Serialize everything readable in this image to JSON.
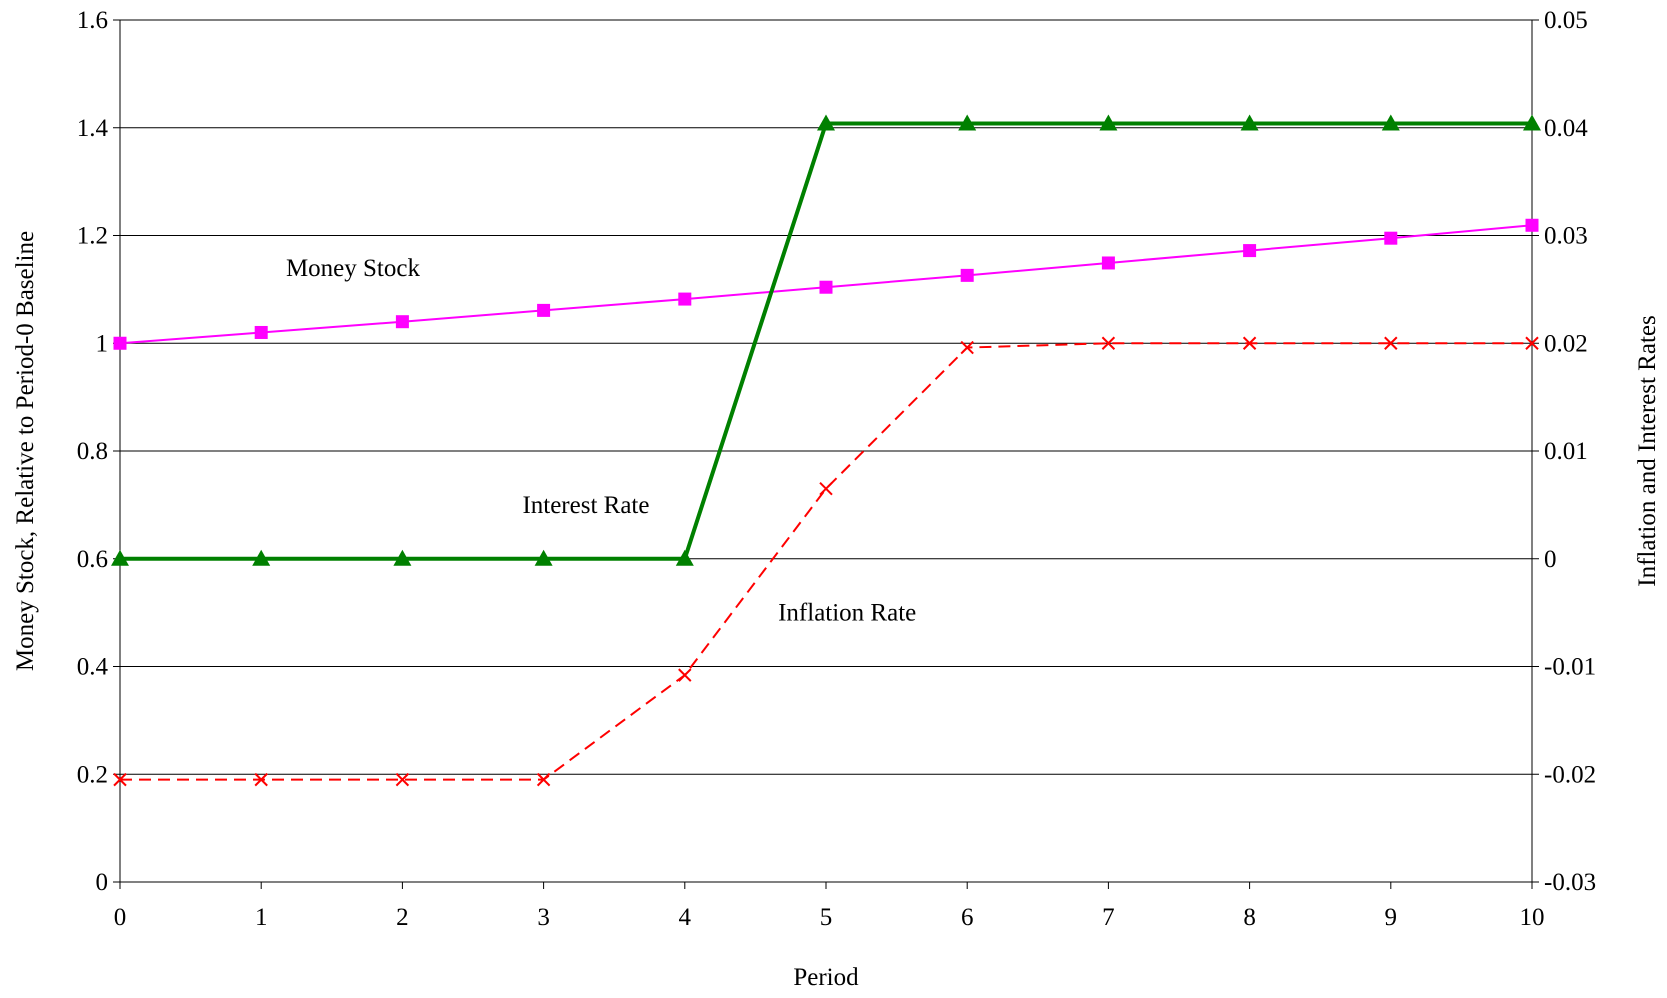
{
  "chart_data": {
    "type": "line",
    "x_label": "Period",
    "y_label": "Money Stock, Relative to Period-0 Baseline",
    "y2_label": "Inflation and Interest Rates",
    "x": [
      0,
      1,
      2,
      3,
      4,
      5,
      6,
      7,
      8,
      9,
      10
    ],
    "xlim": [
      0,
      10
    ],
    "xticks": [
      0,
      1,
      2,
      3,
      4,
      5,
      6,
      7,
      8,
      9,
      10
    ],
    "ylim": [
      0,
      1.6
    ],
    "yticks": [
      0,
      0.2,
      0.4,
      0.6,
      0.8,
      1,
      1.2,
      1.4,
      1.6
    ],
    "y2lim": [
      -0.03,
      0.05
    ],
    "y2ticks": [
      -0.03,
      -0.02,
      -0.01,
      0,
      0.01,
      0.02,
      0.03,
      0.04,
      0.05
    ],
    "grid": true,
    "series": [
      {
        "name": "Money Stock",
        "color": "#ff00ff",
        "marker": "square",
        "dash": false,
        "width": 2,
        "values": [
          1,
          1.02,
          1.04,
          1.061,
          1.082,
          1.104,
          1.126,
          1.149,
          1.172,
          1.195,
          1.219
        ]
      },
      {
        "name": "Interest Rate",
        "color": "#008000",
        "marker": "triangle",
        "dash": false,
        "width": 4,
        "axis": "y2",
        "values": [
          0,
          0,
          0,
          0,
          0,
          0.0404,
          0.0404,
          0.0404,
          0.0404,
          0.0404,
          0.0404
        ]
      },
      {
        "name": "Inflation Rate",
        "color": "#ff0000",
        "marker": "x",
        "dash": true,
        "width": 2,
        "axis": "y2",
        "values": [
          -0.0205,
          -0.0205,
          -0.0205,
          -0.0205,
          -0.0108,
          0.0065,
          0.0196,
          0.02,
          0.02,
          0.02,
          0.02
        ]
      }
    ]
  }
}
